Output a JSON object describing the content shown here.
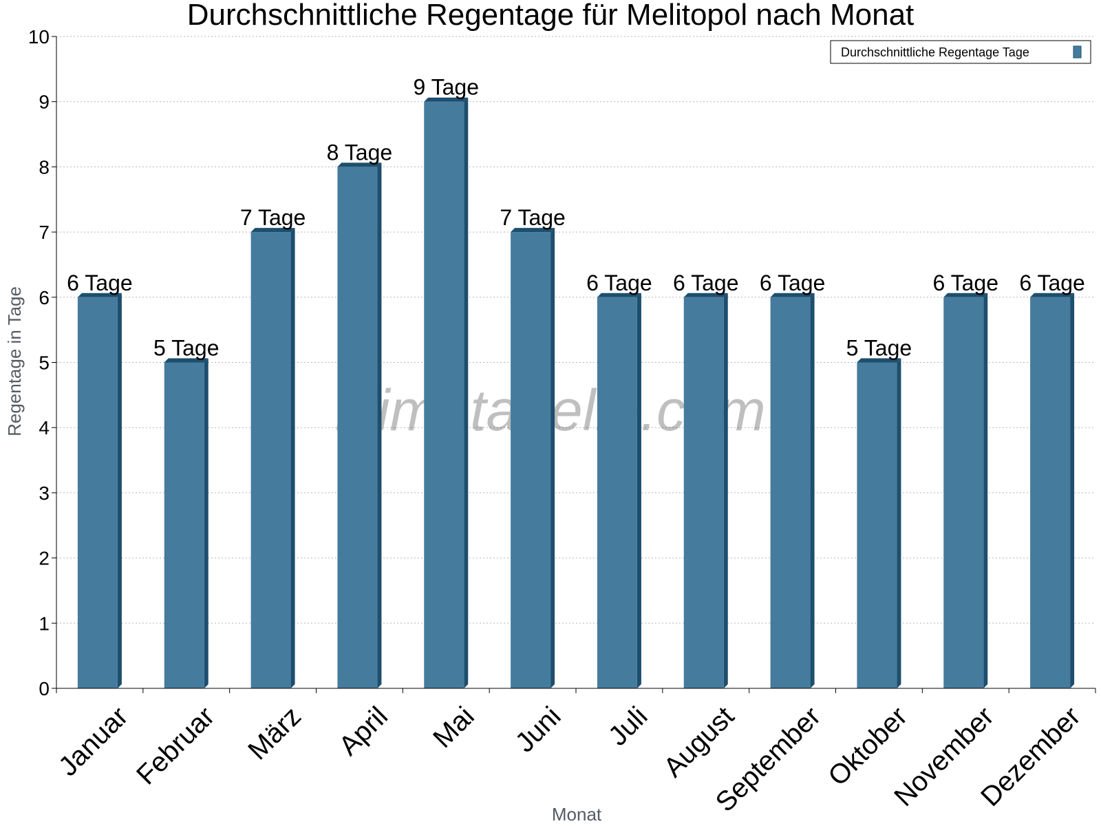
{
  "chart_data": {
    "type": "bar",
    "title": "Durchschnittliche Regentage für Melitopol nach Monat",
    "xlabel": "Monat",
    "ylabel": "Regentage in Tage",
    "ylim": [
      0,
      10
    ],
    "yticks": [
      "0",
      "1",
      "2",
      "3",
      "4",
      "5",
      "6",
      "7",
      "8",
      "9",
      "10"
    ],
    "grid": true,
    "legend_position": "top-right",
    "categories": [
      "Januar",
      "Februar",
      "März",
      "April",
      "Mai",
      "Juni",
      "Juli",
      "August",
      "September",
      "Oktober",
      "November",
      "Dezember"
    ],
    "series": [
      {
        "name": "Durchschnittliche Regentage Tage",
        "values": [
          6,
          5,
          7,
          8,
          9,
          7,
          6,
          6,
          6,
          5,
          6,
          6
        ],
        "color": "#457b9d",
        "side_color": "#1d4e6e"
      }
    ],
    "data_labels": [
      "6 Tage",
      "5 Tage",
      "7 Tage",
      "8 Tage",
      "9 Tage",
      "7 Tage",
      "6 Tage",
      "6 Tage",
      "6 Tage",
      "5 Tage",
      "6 Tage",
      "6 Tage"
    ]
  },
  "watermark": "klimatabelle.com"
}
